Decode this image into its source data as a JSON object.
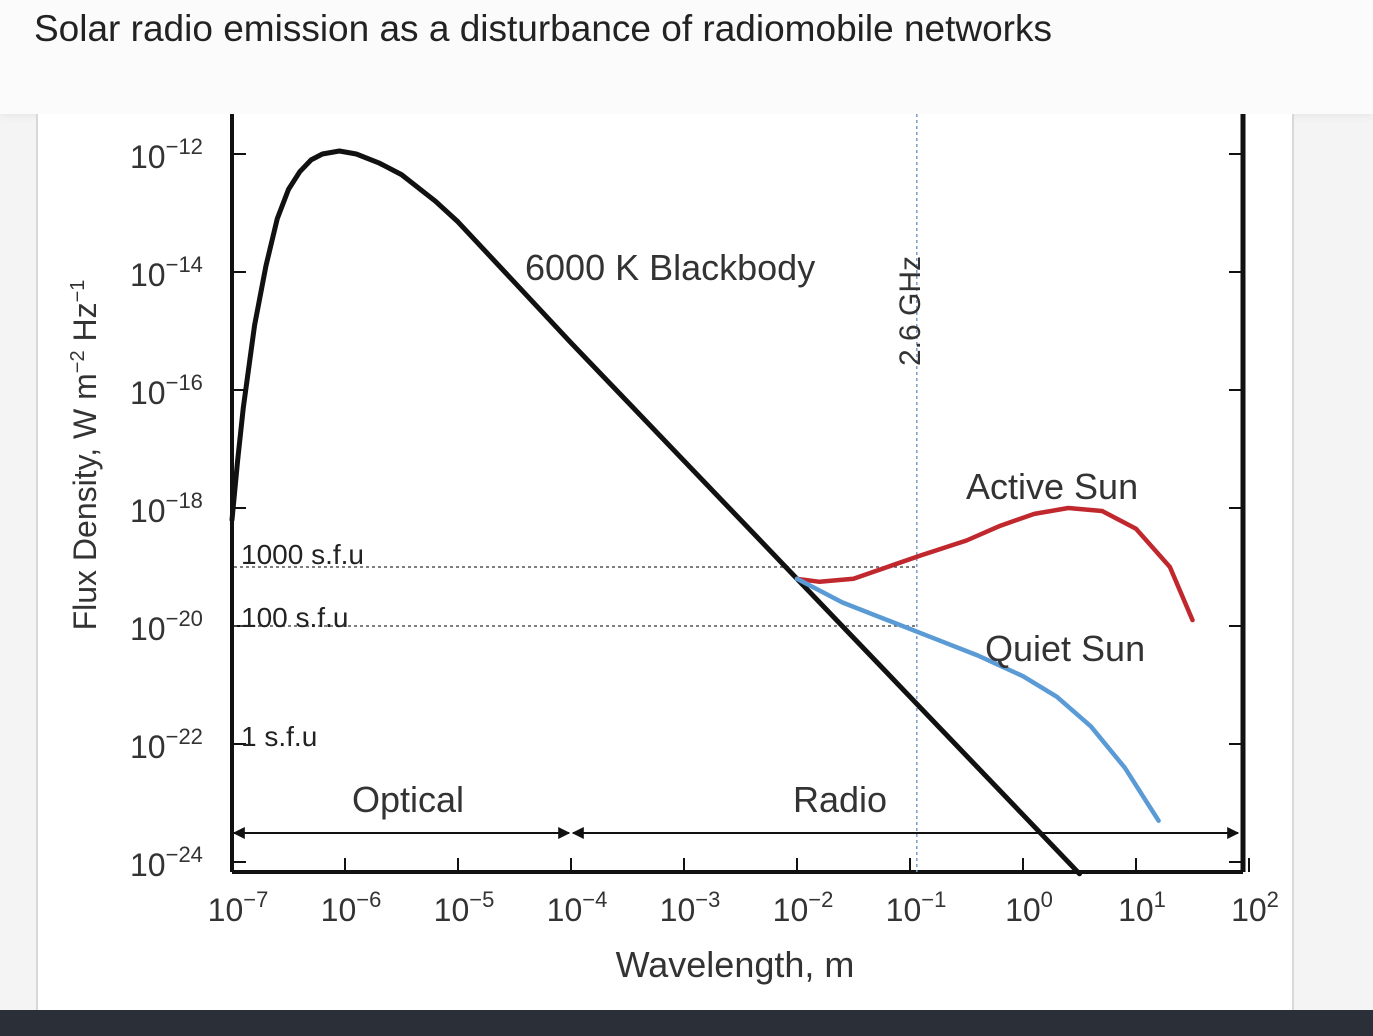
{
  "page": {
    "title": "Solar radio emission as a disturbance of radiomobile networks"
  },
  "chart_data": {
    "type": "line",
    "xscale": "log",
    "yscale": "log",
    "xlim": [
      1e-07,
      100
    ],
    "ylim": [
      1e-24,
      1e-12
    ],
    "xlabel": "Wavelength, m",
    "ylabel_parts": [
      "Flux Density, W m",
      "−2",
      " Hz",
      "−1"
    ],
    "x_ticks": [
      {
        "base": "10",
        "exp": "−7",
        "value": -7
      },
      {
        "base": "10",
        "exp": "−6",
        "value": -6
      },
      {
        "base": "10",
        "exp": "−5",
        "value": -5
      },
      {
        "base": "10",
        "exp": "−4",
        "value": -4
      },
      {
        "base": "10",
        "exp": "−3",
        "value": -3
      },
      {
        "base": "10",
        "exp": "−2",
        "value": -2
      },
      {
        "base": "10",
        "exp": "−1",
        "value": -1
      },
      {
        "base": "10",
        "exp": "0",
        "value": 0
      },
      {
        "base": "10",
        "exp": "1",
        "value": 1
      },
      {
        "base": "10",
        "exp": "2",
        "value": 2
      }
    ],
    "y_ticks": [
      {
        "base": "10",
        "exp": "−12",
        "value": -12
      },
      {
        "base": "10",
        "exp": "−14",
        "value": -14
      },
      {
        "base": "10",
        "exp": "−16",
        "value": -16
      },
      {
        "base": "10",
        "exp": "−18",
        "value": -18
      },
      {
        "base": "10",
        "exp": "−20",
        "value": -20
      },
      {
        "base": "10",
        "exp": "−22",
        "value": -22
      },
      {
        "base": "10",
        "exp": "−24",
        "value": -24
      }
    ],
    "sfu_levels": [
      {
        "label": "1000 s.f.u",
        "log_flux": -19,
        "dotted": true
      },
      {
        "label": "100 s.f.u",
        "log_flux": -20,
        "dotted": true
      },
      {
        "label": "1 s.f.u",
        "log_flux": -22,
        "dotted": false
      }
    ],
    "reference_line": {
      "label": "2.6 GHz",
      "log_wavelength": -0.94
    },
    "regions": [
      {
        "label": "Optical",
        "from": -7,
        "to": -4
      },
      {
        "label": "Radio",
        "from": -4,
        "to": 2
      }
    ],
    "series": [
      {
        "name": "6000 K Blackbody",
        "color": "#111111",
        "points": [
          [
            -7,
            -18.2
          ],
          [
            -6.95,
            -17.2
          ],
          [
            -6.9,
            -16.3
          ],
          [
            -6.8,
            -14.9
          ],
          [
            -6.7,
            -13.9
          ],
          [
            -6.6,
            -13.1
          ],
          [
            -6.5,
            -12.6
          ],
          [
            -6.4,
            -12.3
          ],
          [
            -6.3,
            -12.1
          ],
          [
            -6.2,
            -12.0
          ],
          [
            -6.05,
            -11.95
          ],
          [
            -5.9,
            -12.0
          ],
          [
            -5.7,
            -12.15
          ],
          [
            -5.5,
            -12.35
          ],
          [
            -5.2,
            -12.8
          ],
          [
            -5.0,
            -13.15
          ],
          [
            -4.0,
            -15.2
          ],
          [
            -3.0,
            -17.2
          ],
          [
            -2.0,
            -19.2
          ],
          [
            -1.0,
            -21.2
          ],
          [
            0.0,
            -23.2
          ],
          [
            0.5,
            -24.2
          ]
        ]
      },
      {
        "name": "Active Sun",
        "color": "#c0282d",
        "points": [
          [
            -2.0,
            -19.2
          ],
          [
            -1.8,
            -19.25
          ],
          [
            -1.5,
            -19.2
          ],
          [
            -1.2,
            -19.0
          ],
          [
            -0.9,
            -18.8
          ],
          [
            -0.5,
            -18.55
          ],
          [
            -0.2,
            -18.3
          ],
          [
            0.1,
            -18.1
          ],
          [
            0.4,
            -18.0
          ],
          [
            0.7,
            -18.05
          ],
          [
            1.0,
            -18.35
          ],
          [
            1.3,
            -19.0
          ],
          [
            1.5,
            -19.9
          ]
        ]
      },
      {
        "name": "Quiet Sun",
        "color": "#5b9bd5",
        "points": [
          [
            -2.0,
            -19.2
          ],
          [
            -1.6,
            -19.6
          ],
          [
            -1.2,
            -19.9
          ],
          [
            -0.8,
            -20.2
          ],
          [
            -0.4,
            -20.5
          ],
          [
            0.0,
            -20.85
          ],
          [
            0.3,
            -21.2
          ],
          [
            0.6,
            -21.7
          ],
          [
            0.9,
            -22.4
          ],
          [
            1.2,
            -23.3
          ]
        ]
      }
    ],
    "annotations": [
      {
        "text": "6000 K Blackbody",
        "series": "6000 K Blackbody"
      },
      {
        "text": "Active Sun",
        "series": "Active Sun"
      },
      {
        "text": "Quiet Sun",
        "series": "Quiet Sun"
      }
    ]
  }
}
